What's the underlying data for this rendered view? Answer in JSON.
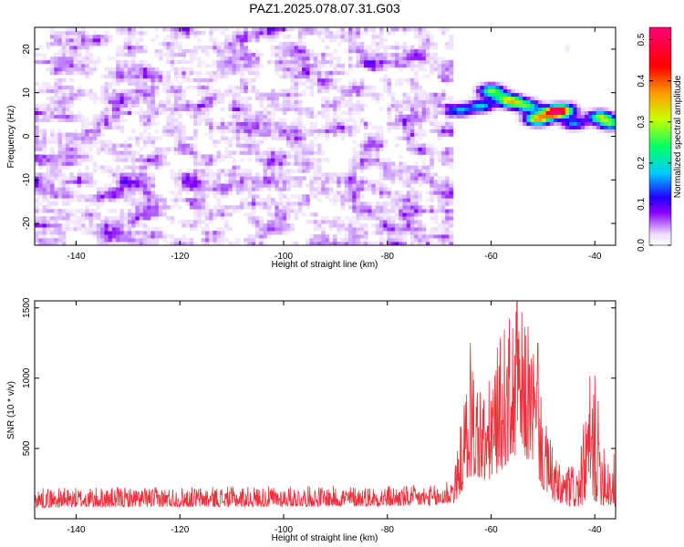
{
  "title": "PAZ1.2025.078.07.31.G03",
  "chart_data": [
    {
      "type": "heatmap",
      "title": "",
      "xlabel": "Height of straight line (km)",
      "ylabel": "Frequency (Hz)",
      "xlim": [
        -148,
        -36
      ],
      "ylim": [
        -25,
        25
      ],
      "x_ticks": [
        -140,
        -120,
        -100,
        -80,
        -60,
        -40
      ],
      "y_ticks": [
        -20,
        -10,
        0,
        10,
        20
      ],
      "colorbar": {
        "label": "Normalized spectral amplitude",
        "range": [
          0.0,
          0.53
        ],
        "ticks": [
          0.0,
          0.1,
          0.2,
          0.3,
          0.4,
          0.5
        ],
        "colors": [
          "#ffffff",
          "#cc99ff",
          "#8800ff",
          "#2200ff",
          "#00ccff",
          "#00ff00",
          "#ffff00",
          "#ff6600",
          "#ff0000",
          "#ff0066"
        ]
      },
      "noise_region": {
        "x_range": [
          -148,
          -67
        ],
        "y_range": [
          -25,
          25
        ],
        "level": 0.05
      },
      "signal_blobs": [
        {
          "x": -66,
          "y": 6,
          "amp": 0.16
        },
        {
          "x": -62,
          "y": 7,
          "amp": 0.18
        },
        {
          "x": -60,
          "y": 10.5,
          "amp": 0.25
        },
        {
          "x": -58,
          "y": 9,
          "amp": 0.14
        },
        {
          "x": -56,
          "y": 8,
          "amp": 0.3
        },
        {
          "x": -53,
          "y": 7,
          "amp": 0.22
        },
        {
          "x": -51,
          "y": 4,
          "amp": 0.36
        },
        {
          "x": -48,
          "y": 5.5,
          "amp": 0.48
        },
        {
          "x": -46,
          "y": 6,
          "amp": 0.27
        },
        {
          "x": -44,
          "y": 3,
          "amp": 0.15
        },
        {
          "x": -39,
          "y": 4.5,
          "amp": 0.26
        },
        {
          "x": -37,
          "y": 3,
          "amp": 0.23
        }
      ]
    },
    {
      "type": "line",
      "title": "",
      "xlabel": "Height of straight line (km)",
      "ylabel": "SNR (10 * v/v)",
      "xlim": [
        -148,
        -36
      ],
      "ylim": [
        0,
        1550
      ],
      "x_ticks": [
        -140,
        -120,
        -100,
        -80,
        -60,
        -40
      ],
      "y_ticks": [
        500,
        1000,
        1500
      ],
      "color": "#e8323c",
      "envelope": [
        {
          "x": -148,
          "base": 80,
          "spread": 140
        },
        {
          "x": -70,
          "base": 90,
          "spread": 150
        },
        {
          "x": -67,
          "base": 110,
          "spread": 250
        },
        {
          "x": -64,
          "base": 300,
          "spread": 900
        },
        {
          "x": -61,
          "base": 250,
          "spread": 650
        },
        {
          "x": -58,
          "base": 350,
          "spread": 1000
        },
        {
          "x": -55,
          "base": 450,
          "spread": 1080
        },
        {
          "x": -52,
          "base": 400,
          "spread": 950
        },
        {
          "x": -50,
          "base": 200,
          "spread": 550
        },
        {
          "x": -47,
          "base": 90,
          "spread": 300
        },
        {
          "x": -43,
          "base": 80,
          "spread": 320
        },
        {
          "x": -41,
          "base": 150,
          "spread": 900
        },
        {
          "x": -39,
          "base": 100,
          "spread": 700
        },
        {
          "x": -37,
          "base": 80,
          "spread": 400
        },
        {
          "x": -36,
          "base": 80,
          "spread": 400
        }
      ],
      "peaks": [
        {
          "x": -64,
          "y": 1250
        },
        {
          "x": -55,
          "y": 1550
        },
        {
          "x": -51,
          "y": 1250
        },
        {
          "x": -40,
          "y": 1020
        }
      ]
    }
  ]
}
